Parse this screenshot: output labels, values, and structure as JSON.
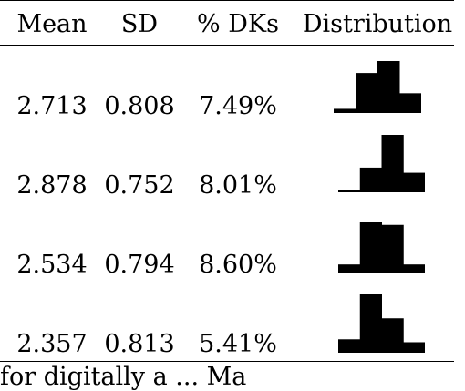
{
  "table": {
    "headers": [
      "Mean",
      "SD",
      "% DKs",
      "Distribution"
    ],
    "rows": [
      {
        "mean": "2.713",
        "sd": "0.808",
        "dk": "7.49%",
        "hist": [
          0.08,
          0.77,
          1.0,
          0.38
        ]
      },
      {
        "mean": "2.878",
        "sd": "0.752",
        "dk": "8.01%",
        "hist": [
          0.04,
          0.43,
          1.0,
          0.34
        ]
      },
      {
        "mean": "2.534",
        "sd": "0.794",
        "dk": "8.60%",
        "hist": [
          0.16,
          1.0,
          0.95,
          0.16
        ]
      },
      {
        "mean": "2.357",
        "sd": "0.813",
        "dk": "5.41%",
        "hist": [
          0.23,
          1.0,
          0.59,
          0.18
        ]
      }
    ]
  },
  "footer": {
    "text": "for digitally a    ...    Ma"
  }
}
